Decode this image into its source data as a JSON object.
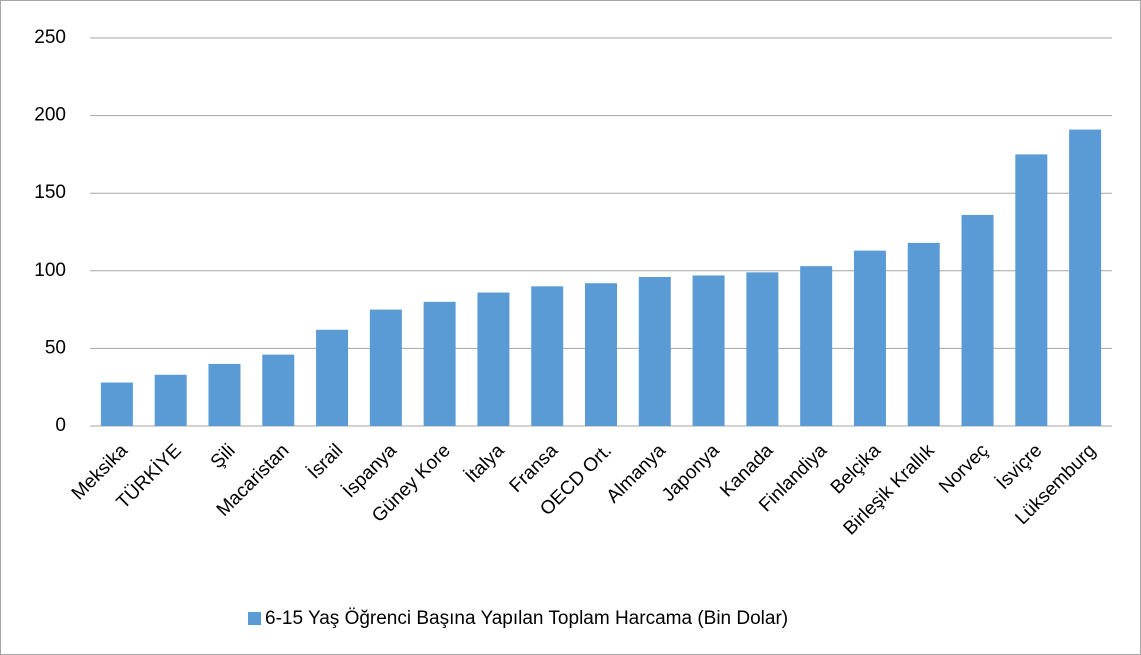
{
  "chart_data": {
    "type": "bar",
    "categories": [
      "Meksika",
      "TÜRKİYE",
      "Şili",
      "Macaristan",
      "İsrail",
      "İspanya",
      "Güney Kore",
      "İtalya",
      "Fransa",
      "OECD Ort.",
      "Almanya",
      "Japonya",
      "Kanada",
      "Finlandiya",
      "Belçika",
      "Birleşik Krallık",
      "Norveç",
      "İsviçre",
      "Lüksemburg"
    ],
    "series": [
      {
        "name": "6-15 Yaş Öğrenci Başına Yapılan Toplam Harcama (Bin Dolar)",
        "color": "#5b9bd5",
        "values": [
          28,
          33,
          40,
          46,
          62,
          75,
          80,
          86,
          90,
          92,
          96,
          97,
          99,
          103,
          113,
          118,
          136,
          175,
          191
        ]
      }
    ],
    "ylim": [
      0,
      250
    ],
    "yticks": [
      0,
      50,
      100,
      150,
      200,
      250
    ],
    "grid": true,
    "legend": "bottom"
  }
}
